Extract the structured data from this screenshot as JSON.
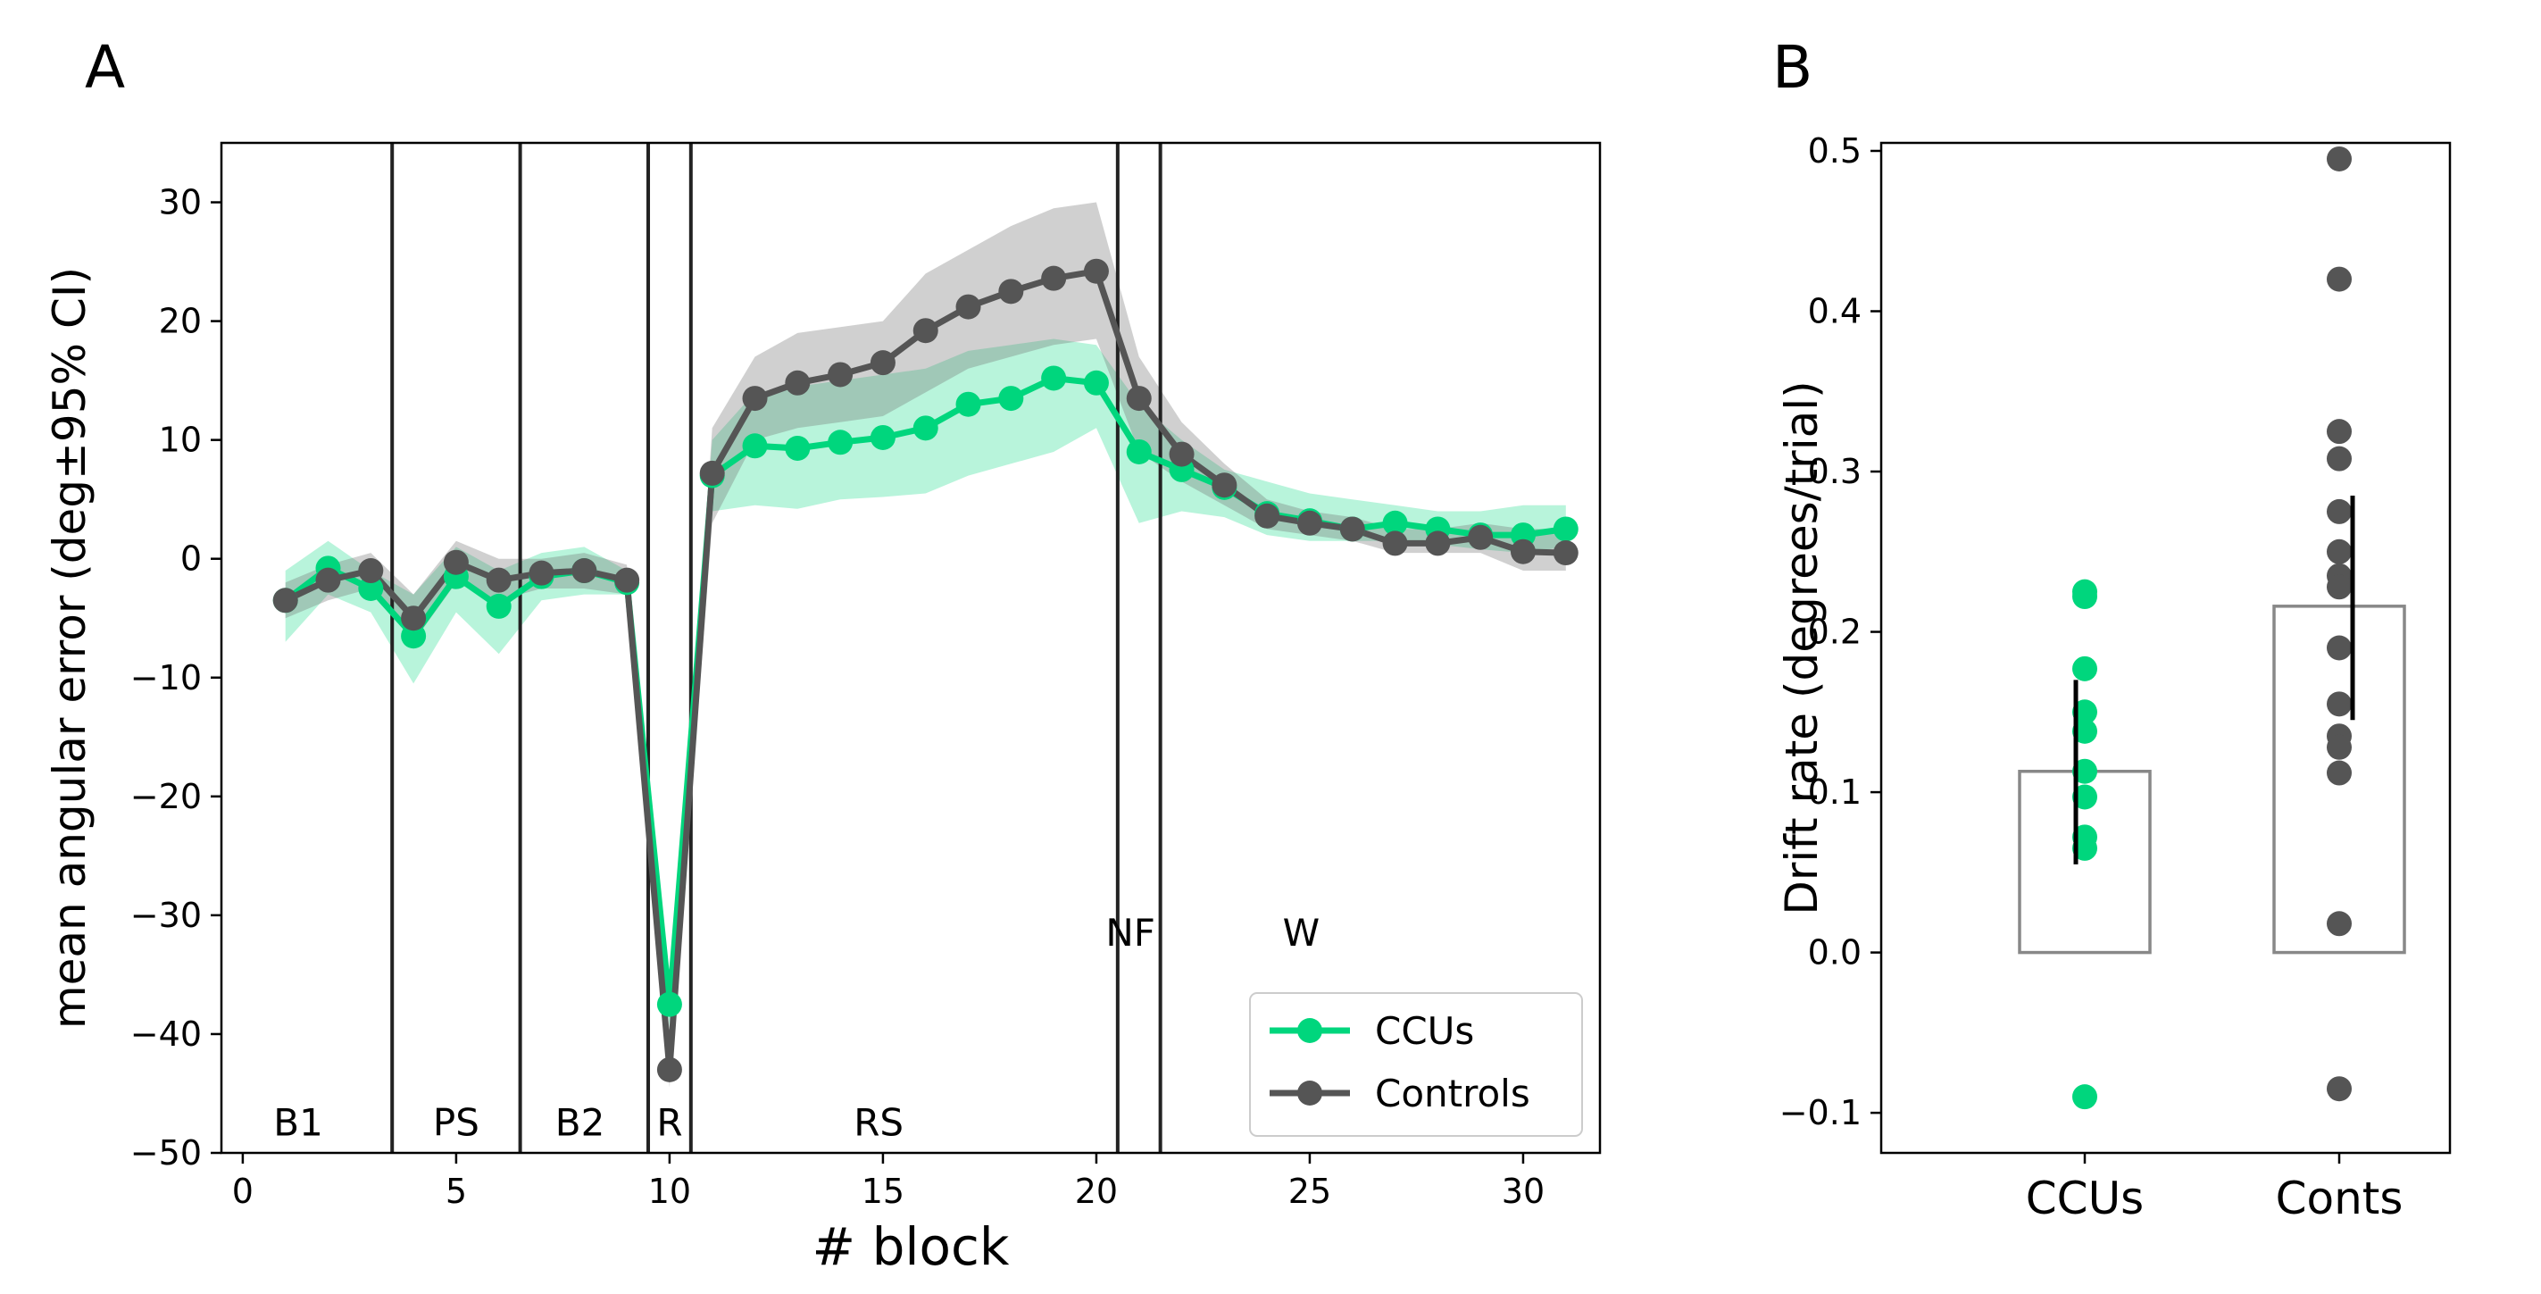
{
  "panel_labels": {
    "a": "A",
    "b": "B"
  },
  "colors": {
    "ccu": "#00d67d",
    "ctrl": "#555555",
    "frame": "#000000",
    "phase_line": "#222222"
  },
  "chart_data": [
    {
      "type": "line",
      "title": "",
      "xlabel": "# block",
      "ylabel": "mean angular error (deg±95% CI)",
      "xlim": [
        -0.5,
        31.8
      ],
      "ylim": [
        -50,
        35
      ],
      "xticks": [
        0,
        5,
        10,
        15,
        20,
        25,
        30
      ],
      "yticks": [
        -50,
        -40,
        -30,
        -20,
        -10,
        0,
        10,
        20,
        30
      ],
      "xtick_labels": [
        "0",
        "5",
        "10",
        "15",
        "20",
        "25",
        "30"
      ],
      "ytick_labels": [
        "−50",
        "−40",
        "−30",
        "−20",
        "−10",
        "0",
        "10",
        "20",
        "30"
      ],
      "phase_boundaries": [
        3.5,
        6.5,
        9.5,
        10.5,
        20.5,
        21.5
      ],
      "phase_labels": [
        {
          "text": "B1",
          "x": 1.3,
          "y": -47.5
        },
        {
          "text": "PS",
          "x": 5.0,
          "y": -47.5
        },
        {
          "text": "B2",
          "x": 7.9,
          "y": -47.5
        },
        {
          "text": "R",
          "x": 10.0,
          "y": -47.5
        },
        {
          "text": "RS",
          "x": 14.9,
          "y": -47.5
        },
        {
          "text": "NF",
          "x": 20.8,
          "y": -31.5
        },
        {
          "text": "W",
          "x": 24.8,
          "y": -31.5
        }
      ],
      "x": [
        1,
        2,
        3,
        4,
        5,
        6,
        7,
        8,
        9,
        10,
        11,
        12,
        13,
        14,
        15,
        16,
        17,
        18,
        19,
        20,
        21,
        22,
        23,
        24,
        25,
        26,
        27,
        28,
        29,
        30,
        31
      ],
      "series": [
        {
          "name": "CCUs",
          "values": [
            -3.5,
            -0.8,
            -2.5,
            -6.5,
            -1.5,
            -4.0,
            -1.5,
            -1.0,
            -2.0,
            -37.5,
            7.0,
            9.5,
            9.3,
            9.8,
            10.2,
            11.0,
            13.0,
            13.5,
            15.2,
            14.8,
            9.0,
            7.5,
            6.0,
            3.8,
            3.2,
            2.5,
            3.0,
            2.5,
            2.0,
            2.0,
            2.5
          ],
          "ci_low": [
            -7.0,
            -3.0,
            -4.5,
            -10.5,
            -4.5,
            -8.0,
            -3.5,
            -3.0,
            -3.0,
            -39.5,
            4.0,
            4.5,
            4.2,
            5.0,
            5.2,
            5.5,
            7.0,
            8.0,
            9.0,
            11.0,
            3.0,
            4.0,
            3.5,
            2.0,
            1.5,
            1.5,
            1.5,
            1.2,
            0.8,
            0.5,
            1.0
          ],
          "ci_high": [
            -1.0,
            1.5,
            -1.0,
            -3.0,
            1.0,
            -1.0,
            0.5,
            1.0,
            -1.0,
            -35.5,
            10.0,
            14.0,
            14.5,
            15.0,
            15.5,
            16.0,
            17.5,
            18.0,
            18.5,
            18.0,
            13.0,
            10.0,
            7.5,
            6.5,
            5.5,
            5.0,
            4.5,
            4.0,
            4.0,
            4.5,
            4.5
          ],
          "legend_label": "CCUs"
        },
        {
          "name": "Controls",
          "values": [
            -3.5,
            -1.8,
            -1.0,
            -5.0,
            -0.3,
            -1.8,
            -1.2,
            -1.0,
            -1.8,
            -43.0,
            7.2,
            13.5,
            14.8,
            15.5,
            16.5,
            19.2,
            21.2,
            22.5,
            23.6,
            24.2,
            13.5,
            8.8,
            6.2,
            3.6,
            3.0,
            2.5,
            1.3,
            1.3,
            1.8,
            0.6,
            0.5
          ],
          "ci_low": [
            -5.0,
            -3.5,
            -2.5,
            -7.0,
            -2.0,
            -3.5,
            -2.5,
            -2.5,
            -3.0,
            -44.5,
            3.0,
            10.0,
            11.0,
            11.5,
            12.0,
            14.0,
            16.0,
            17.0,
            18.0,
            18.5,
            9.0,
            6.5,
            4.5,
            2.5,
            2.0,
            1.5,
            0.5,
            0.5,
            0.5,
            -1.0,
            -1.0
          ],
          "ci_high": [
            -2.0,
            -0.5,
            0.5,
            -3.0,
            1.5,
            0.0,
            0.0,
            0.5,
            -0.5,
            -41.5,
            11.0,
            17.0,
            19.0,
            19.5,
            20.0,
            24.0,
            26.0,
            28.0,
            29.5,
            30.0,
            17.0,
            11.5,
            8.0,
            5.0,
            4.0,
            3.5,
            2.5,
            2.5,
            3.0,
            2.5,
            2.5
          ],
          "legend_label": "Controls"
        }
      ],
      "legend": {
        "position": "bottom-right",
        "entries": [
          "CCUs",
          "Controls"
        ]
      }
    },
    {
      "type": "bar",
      "title": "",
      "xlabel": "",
      "ylabel": "Drift rate (degrees/trial)",
      "ylim": [
        -0.125,
        0.505
      ],
      "categories": [
        "CCUs",
        "Conts"
      ],
      "yticks": [
        -0.1,
        0.0,
        0.1,
        0.2,
        0.3,
        0.4,
        0.5
      ],
      "ytick_labels": [
        "−0.1",
        "0.0",
        "0.1",
        "0.2",
        "0.3",
        "0.4",
        "0.5"
      ],
      "series": [
        {
          "name": "CCUs",
          "mean": 0.113,
          "error_low": 0.055,
          "error_high": 0.17,
          "points": [
            0.225,
            0.222,
            0.177,
            0.15,
            0.138,
            0.113,
            0.097,
            0.072,
            0.065,
            -0.09
          ]
        },
        {
          "name": "Conts",
          "mean": 0.216,
          "error_low": 0.145,
          "error_high": 0.285,
          "points": [
            0.495,
            0.42,
            0.325,
            0.308,
            0.275,
            0.25,
            0.235,
            0.228,
            0.19,
            0.155,
            0.135,
            0.128,
            0.112,
            0.018,
            -0.085
          ]
        }
      ]
    }
  ]
}
